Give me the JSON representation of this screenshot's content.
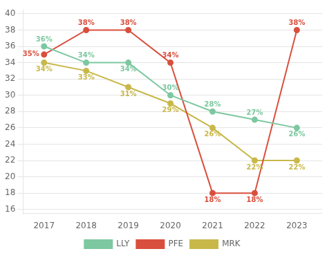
{
  "chart_data": {
    "type": "line",
    "x": [
      2017,
      2018,
      2019,
      2020,
      2021,
      2022,
      2023
    ],
    "xlim": [
      2016.5,
      2023.6
    ],
    "xticks": [
      2017,
      2018,
      2019,
      2020,
      2021,
      2022,
      2023
    ],
    "ylim": [
      15.5,
      40.5
    ],
    "yticks": [
      16,
      18,
      20,
      22,
      24,
      26,
      28,
      30,
      32,
      34,
      36,
      38,
      40
    ],
    "grid": "y",
    "legend": "bottom",
    "data_labels": true,
    "marker": "circle",
    "series": [
      {
        "name": "LLY",
        "color": "#7dc8a0",
        "values": [
          36,
          34,
          34,
          30,
          28,
          27,
          26
        ],
        "value_labels": [
          "36%",
          "34%",
          "34%",
          "30%",
          "28%",
          "27%",
          "26%"
        ]
      },
      {
        "name": "PFE",
        "color": "#d94f3d",
        "values": [
          35,
          38,
          38,
          34,
          18,
          18,
          38
        ],
        "value_labels": [
          "35%",
          "38%",
          "38%",
          "34%",
          "18%",
          "18%",
          "38%"
        ]
      },
      {
        "name": "MRK",
        "color": "#c8b84a",
        "values": [
          34,
          33,
          31,
          29,
          26,
          22,
          22
        ],
        "value_labels": [
          "34%",
          "33%",
          "31%",
          "29%",
          "26%",
          "22%",
          "22%"
        ]
      }
    ]
  }
}
